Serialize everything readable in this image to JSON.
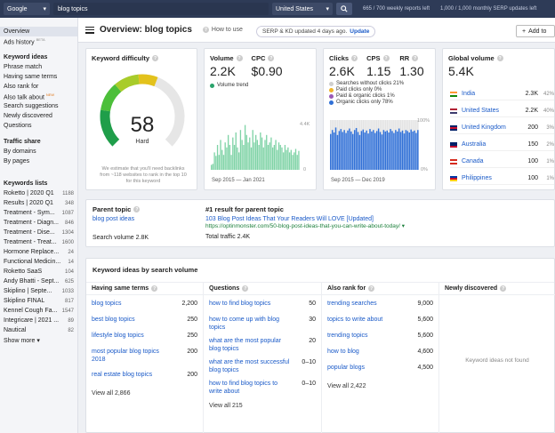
{
  "topbar": {
    "engine": "Google",
    "query": "blog topics",
    "country": "United States",
    "quota1": "665 / 700 weekly reports left",
    "quota2": "1,000 / 1,000 monthly SERP updates left"
  },
  "sidebar": {
    "overview": "Overview",
    "ads_history": "Ads history",
    "ads_beta": "BETA",
    "keyword_ideas_head": "Keyword ideas",
    "ideas": [
      "Phrase match",
      "Having same terms",
      "Also rank for",
      "Also talk about",
      "Search suggestions",
      "Newly discovered",
      "Questions"
    ],
    "new_badge": "NEW",
    "traffic_head": "Traffic share",
    "traffic": [
      "By domains",
      "By pages"
    ],
    "lists_head": "Keywords lists",
    "lists": [
      {
        "name": "Roketto | 2020 Q1",
        "count": "1188"
      },
      {
        "name": "Results | 2020 Q1",
        "count": "348"
      },
      {
        "name": "Treatment - Sym...",
        "count": "1087"
      },
      {
        "name": "Treatment - Diagn...",
        "count": "846"
      },
      {
        "name": "Treatment - Dise...",
        "count": "1304"
      },
      {
        "name": "Treatment - Treat...",
        "count": "1600"
      },
      {
        "name": "Hormone Replace...",
        "count": "24"
      },
      {
        "name": "Functional Medicin...",
        "count": "14"
      },
      {
        "name": "Roketto SaaS",
        "count": "104"
      },
      {
        "name": "Andy Bhatti - Sept...",
        "count": "625"
      },
      {
        "name": "Skiplino | Septe...",
        "count": "1033"
      },
      {
        "name": "Skiplino FINAL",
        "count": "817"
      },
      {
        "name": "Kennel Cough Fa...",
        "count": "1547"
      },
      {
        "name": "Integricare | 2021 ...",
        "count": "89"
      },
      {
        "name": "Nautical",
        "count": "82"
      }
    ],
    "show_more": "Show more"
  },
  "header": {
    "title": "Overview: blog topics",
    "how_to": "How to use",
    "serp_text": "SERP & KD updated 4 days ago.",
    "update": "Update",
    "add_to": "Add to"
  },
  "kd": {
    "label": "Keyword difficulty",
    "value": "58",
    "rating": "Hard",
    "note": "We estimate that you'll need backlinks from ~118 websites to rank in the top 10 for this keyword",
    "fraction": 0.58
  },
  "volume": {
    "label": "Volume",
    "value": "2.2K",
    "cpc_label": "CPC",
    "cpc_value": "$0.90",
    "trend_label": "Volume trend",
    "y_top": "4.4K",
    "y_zero": "0",
    "date_range": "Sep 2015 — Jan 2021",
    "bars": [
      0.1,
      0.12,
      0.35,
      0.28,
      0.5,
      0.3,
      0.6,
      0.4,
      0.3,
      0.55,
      0.45,
      0.7,
      0.5,
      0.3,
      0.65,
      0.5,
      0.75,
      0.45,
      0.35,
      0.8,
      0.6,
      0.5,
      0.9,
      0.7,
      0.55,
      0.65,
      0.45,
      0.8,
      0.55,
      0.7,
      0.6,
      0.5,
      0.75,
      0.65,
      0.45,
      0.6,
      0.7,
      0.5,
      0.55,
      0.65,
      0.45,
      0.5,
      0.6,
      0.4,
      0.55,
      0.5,
      0.45,
      0.35,
      0.5,
      0.4,
      0.45,
      0.35,
      0.4,
      0.3,
      0.35,
      0.42,
      0.3,
      0.38
    ]
  },
  "clicks": {
    "label": "Clicks",
    "value": "2.6K",
    "cps_label": "CPS",
    "cps_value": "1.15",
    "rr_label": "RR",
    "rr_value": "1.30",
    "legend": [
      {
        "text": "Searches without clicks 21%",
        "color": "#cfcfcf"
      },
      {
        "text": "Paid clicks only 0%",
        "color": "#f0b429"
      },
      {
        "text": "Paid & organic clicks 1%",
        "color": "#9b59b6"
      },
      {
        "text": "Organic clicks only 78%",
        "color": "#2f6fd6"
      }
    ],
    "y_top": "100%",
    "y_zero": "0%",
    "date_range": "Sep 2015 — Dec 2019",
    "bars": [
      0.72,
      0.8,
      0.75,
      0.85,
      0.7,
      0.78,
      0.82,
      0.76,
      0.8,
      0.74,
      0.79,
      0.83,
      0.77,
      0.72,
      0.8,
      0.84,
      0.76,
      0.7,
      0.78,
      0.81,
      0.75,
      0.79,
      0.73,
      0.82,
      0.77,
      0.8,
      0.74,
      0.78,
      0.83,
      0.76,
      0.71,
      0.8,
      0.77,
      0.79,
      0.75,
      0.82,
      0.78,
      0.74,
      0.8,
      0.77,
      0.83,
      0.76,
      0.79,
      0.73,
      0.8,
      0.78,
      0.75,
      0.81,
      0.77,
      0.79,
      0.74,
      0.8
    ]
  },
  "global": {
    "label": "Global volume",
    "value": "5.4K",
    "countries": [
      {
        "name": "India",
        "vol": "2.3K",
        "pct": "42%"
      },
      {
        "name": "United States",
        "vol": "2.2K",
        "pct": "40%"
      },
      {
        "name": "United Kingdom",
        "vol": "200",
        "pct": "3%"
      },
      {
        "name": "Australia",
        "vol": "150",
        "pct": "2%"
      },
      {
        "name": "Canada",
        "vol": "100",
        "pct": "1%"
      },
      {
        "name": "Philippines",
        "vol": "100",
        "pct": "1%"
      }
    ]
  },
  "parent": {
    "label": "Parent topic",
    "topic": "blog post ideas",
    "search_volume": "Search volume 2.8K",
    "result_label": "#1 result for parent topic",
    "result_title": "103 Blog Post Ideas That Your Readers Will LOVE [Updated]",
    "result_url": "https://optinmonster.com/50-blog-post-ideas-that-you-can-write-about-today/",
    "total_traffic": "Total traffic 2.4K"
  },
  "ideas": {
    "title": "Keyword ideas by search volume",
    "same_terms": {
      "head": "Having same terms",
      "rows": [
        {
          "kw": "blog topics",
          "num": "2,200"
        },
        {
          "kw": "best blog topics",
          "num": "250"
        },
        {
          "kw": "lifestyle blog topics",
          "num": "250"
        },
        {
          "kw": "most popular blog topics 2018",
          "num": "200"
        },
        {
          "kw": "real estate blog topics",
          "num": "200"
        }
      ],
      "view_all": "View all 2,866"
    },
    "questions": {
      "head": "Questions",
      "rows": [
        {
          "kw": "how to find blog topics",
          "num": "50"
        },
        {
          "kw": "how to come up with blog topics",
          "num": "30"
        },
        {
          "kw": "what are the most popular blog topics",
          "num": "20"
        },
        {
          "kw": "what are the most successful blog topics",
          "num": "0–10"
        },
        {
          "kw": "how to find blog topics to write about",
          "num": "0–10"
        }
      ],
      "view_all": "View all 215"
    },
    "also_rank": {
      "head": "Also rank for",
      "rows": [
        {
          "kw": "trending searches",
          "num": "9,000"
        },
        {
          "kw": "topics to write about",
          "num": "5,600"
        },
        {
          "kw": "trending topics",
          "num": "5,600"
        },
        {
          "kw": "how to blog",
          "num": "4,600"
        },
        {
          "kw": "popular blogs",
          "num": "4,500"
        }
      ],
      "view_all": "View all 2,422"
    },
    "newly": {
      "head": "Newly discovered",
      "empty": "Keyword ideas not found"
    }
  }
}
